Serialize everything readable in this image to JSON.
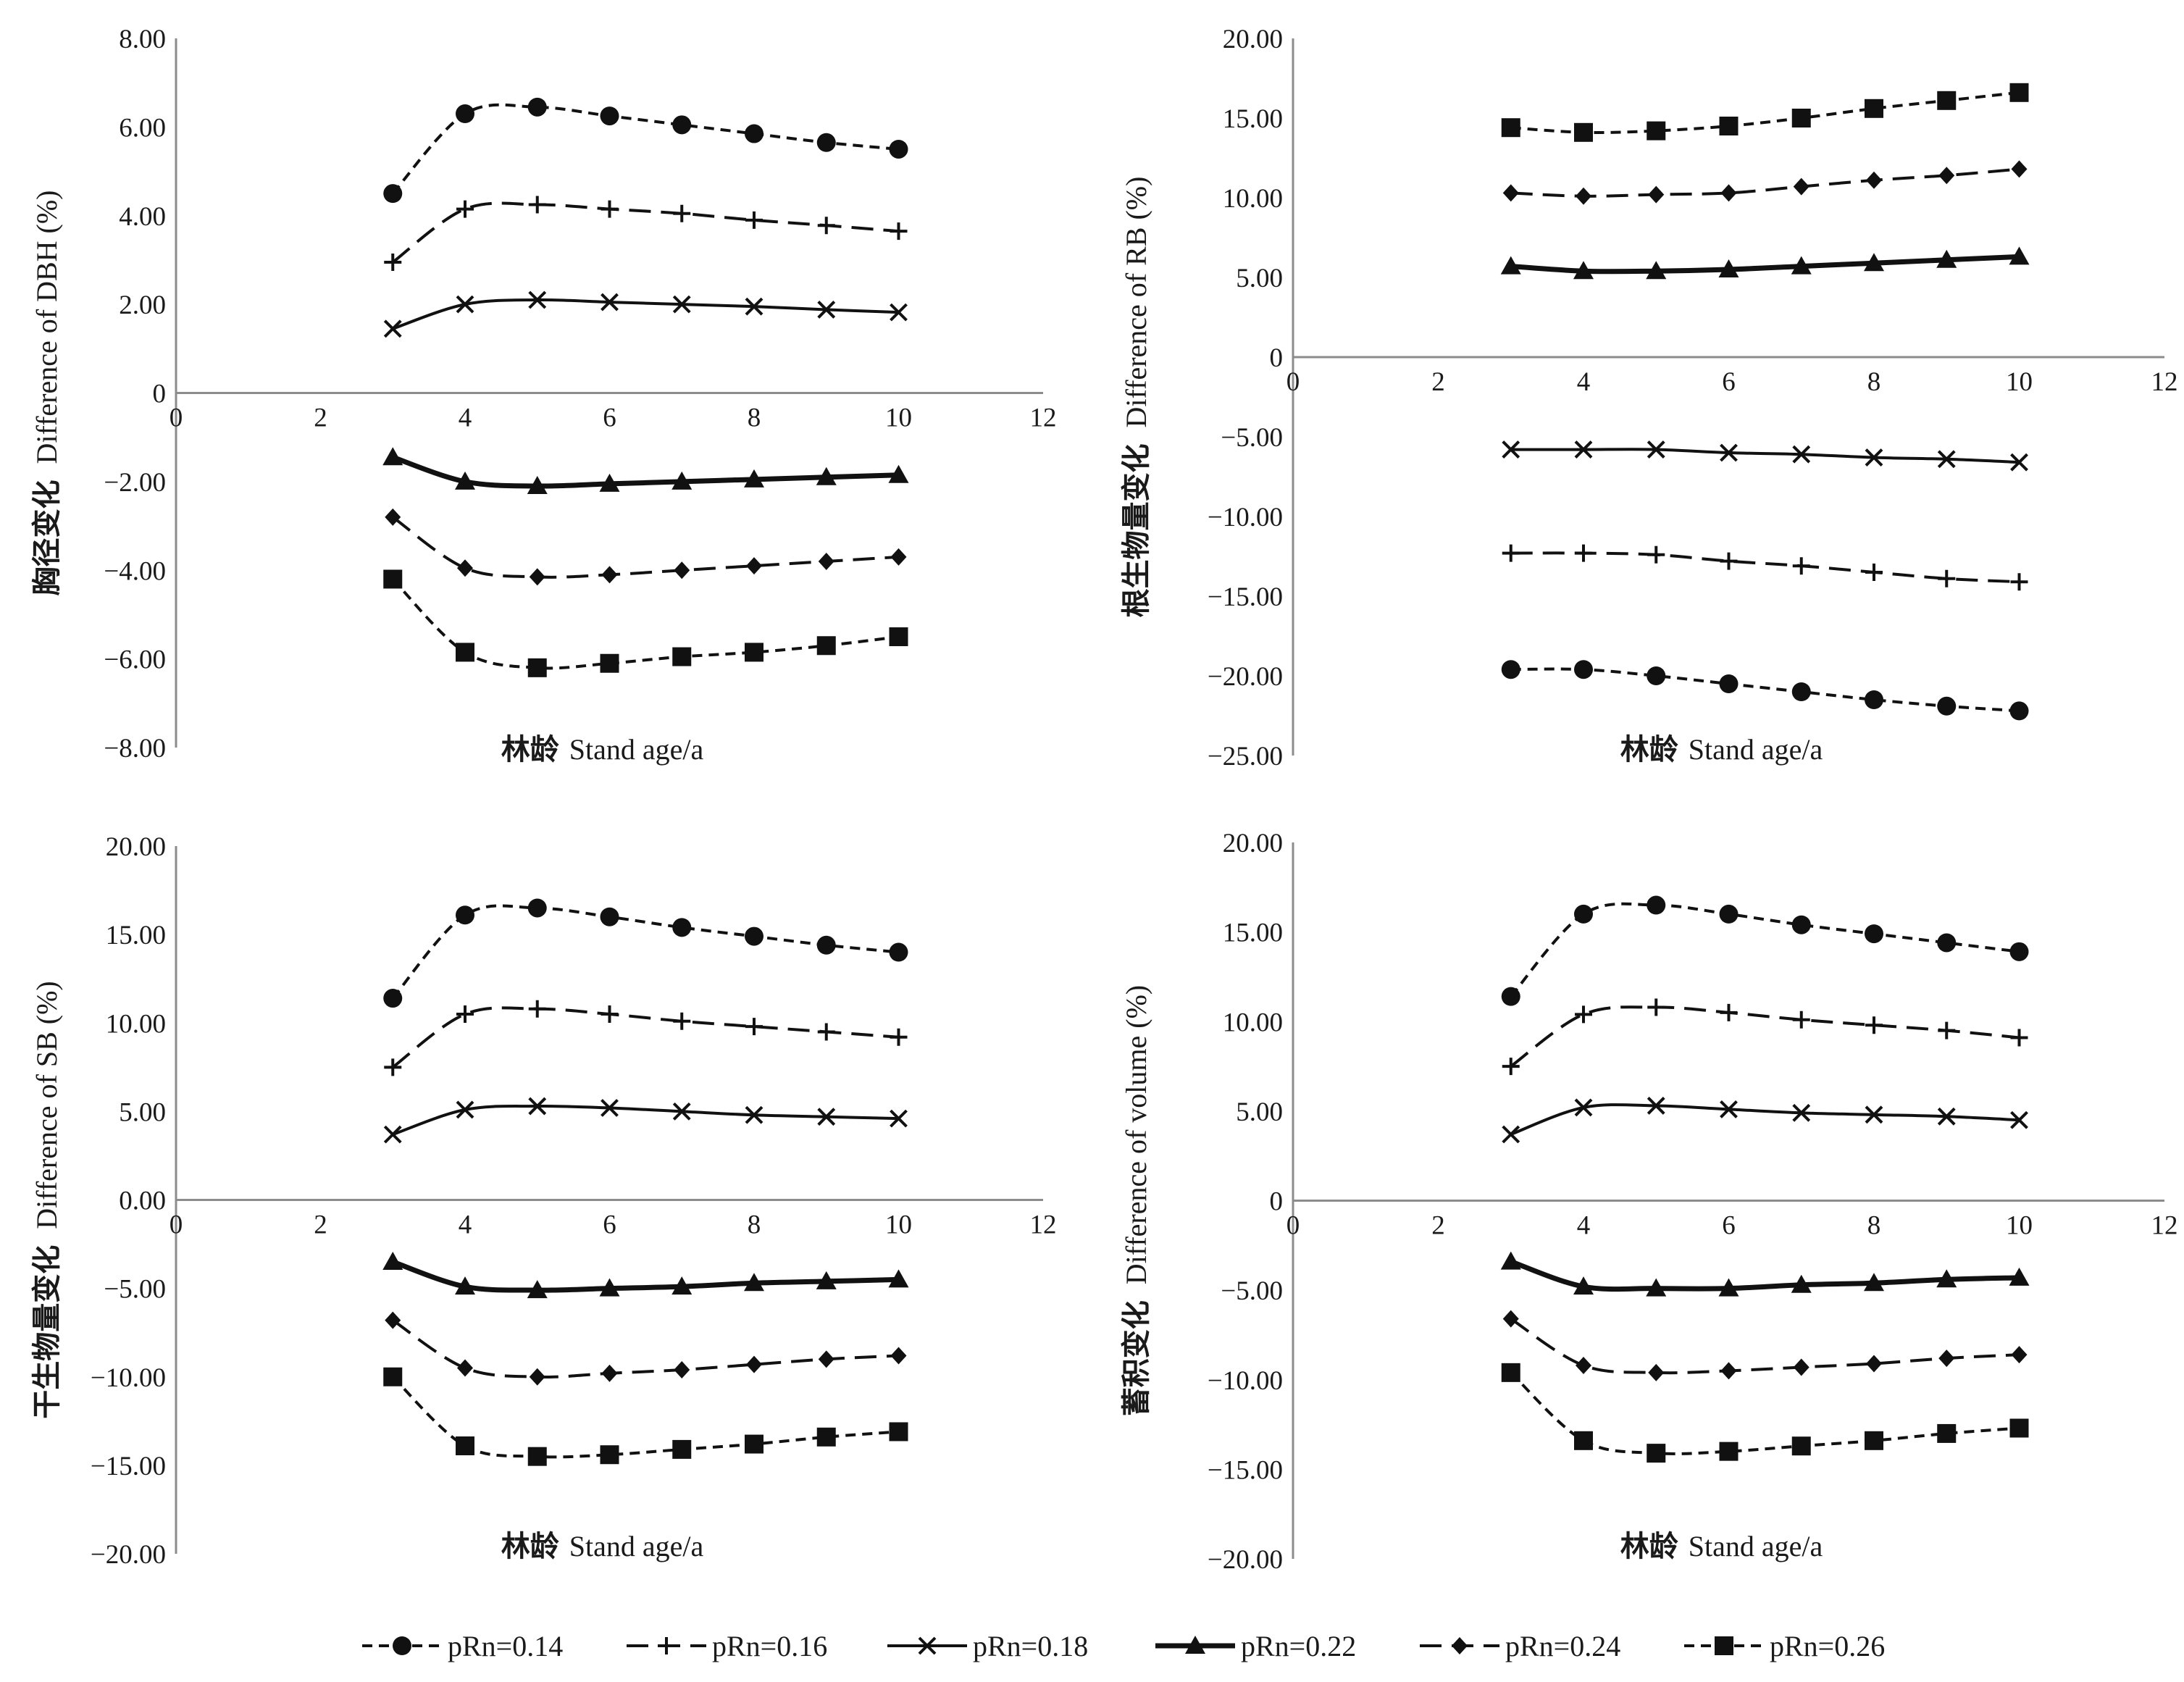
{
  "legend": [
    {
      "label": "pRn=0.14",
      "dash": "dashed-short",
      "marker": "circle"
    },
    {
      "label": "pRn=0.16",
      "dash": "dashed-long",
      "marker": "plus"
    },
    {
      "label": "pRn=0.18",
      "dash": "solid-thin",
      "marker": "x"
    },
    {
      "label": "pRn=0.22",
      "dash": "solid-thick",
      "marker": "triangle"
    },
    {
      "label": "pRn=0.24",
      "dash": "dashed-long",
      "marker": "diamond"
    },
    {
      "label": "pRn=0.26",
      "dash": "dashed-short",
      "marker": "square"
    }
  ],
  "chart_data": [
    {
      "type": "line",
      "ylabel_cn": "胸径变化",
      "ylabel_en": "Difference of DBH (%)",
      "xlabel_cn": "林龄",
      "xlabel_en": "Stand age/a",
      "xlim": [
        0,
        12
      ],
      "ylim": [
        -8,
        8
      ],
      "xticks": [
        "0",
        "2",
        "4",
        "6",
        "8",
        "10",
        "12"
      ],
      "yticks": [
        {
          "v": 8,
          "label": "8.00"
        },
        {
          "v": 6,
          "label": "6.00"
        },
        {
          "v": 4,
          "label": "4.00"
        },
        {
          "v": 2,
          "label": "2.00"
        },
        {
          "v": 0,
          "label": "0"
        },
        {
          "v": -2,
          "label": "−2.00"
        },
        {
          "v": -4,
          "label": "−4.00"
        },
        {
          "v": -6,
          "label": "−6.00"
        },
        {
          "v": -8,
          "label": "−8.00"
        }
      ],
      "x": [
        3,
        4,
        5,
        6,
        7,
        8,
        9,
        10
      ],
      "series": [
        {
          "name": "pRn=0.14",
          "values": [
            4.5,
            6.3,
            6.45,
            6.25,
            6.05,
            5.85,
            5.65,
            5.5
          ]
        },
        {
          "name": "pRn=0.16",
          "values": [
            2.95,
            4.15,
            4.25,
            4.15,
            4.05,
            3.9,
            3.78,
            3.65
          ]
        },
        {
          "name": "pRn=0.18",
          "values": [
            1.45,
            2.0,
            2.1,
            2.05,
            2.0,
            1.95,
            1.88,
            1.82
          ]
        },
        {
          "name": "pRn=0.22",
          "values": [
            -1.45,
            -2.0,
            -2.1,
            -2.05,
            -2.0,
            -1.95,
            -1.9,
            -1.85
          ]
        },
        {
          "name": "pRn=0.24",
          "values": [
            -2.8,
            -3.95,
            -4.15,
            -4.1,
            -4.0,
            -3.9,
            -3.8,
            -3.7
          ]
        },
        {
          "name": "pRn=0.26",
          "values": [
            -4.2,
            -5.85,
            -6.2,
            -6.1,
            -5.95,
            -5.85,
            -5.7,
            -5.5
          ]
        }
      ]
    },
    {
      "type": "line",
      "ylabel_cn": "根生物量变化",
      "ylabel_en": "Difference of RB (%)",
      "xlabel_cn": "林龄",
      "xlabel_en": "Stand age/a",
      "xlim": [
        0,
        12
      ],
      "ylim": [
        -25,
        20
      ],
      "xticks": [
        "0",
        "2",
        "4",
        "6",
        "8",
        "10",
        "12"
      ],
      "yticks": [
        {
          "v": 20,
          "label": "20.00"
        },
        {
          "v": 15,
          "label": "15.00"
        },
        {
          "v": 10,
          "label": "10.00"
        },
        {
          "v": 5,
          "label": "5.00"
        },
        {
          "v": 0,
          "label": "0"
        },
        {
          "v": -5,
          "label": "−5.00"
        },
        {
          "v": -10,
          "label": "−10.00"
        },
        {
          "v": -15,
          "label": "−15.00"
        },
        {
          "v": -20,
          "label": "−20.00"
        },
        {
          "v": -25,
          "label": "−25.00"
        }
      ],
      "x": [
        3,
        4,
        5,
        6,
        7,
        8,
        9,
        10
      ],
      "series": [
        {
          "name": "pRn=0.14",
          "values": [
            -19.6,
            -19.6,
            -20.0,
            -20.5,
            -21.0,
            -21.5,
            -21.9,
            -22.2
          ]
        },
        {
          "name": "pRn=0.16",
          "values": [
            -12.3,
            -12.3,
            -12.4,
            -12.8,
            -13.1,
            -13.5,
            -13.9,
            -14.1
          ]
        },
        {
          "name": "pRn=0.18",
          "values": [
            -5.8,
            -5.8,
            -5.8,
            -6.0,
            -6.1,
            -6.3,
            -6.4,
            -6.6
          ]
        },
        {
          "name": "pRn=0.22",
          "values": [
            5.7,
            5.4,
            5.4,
            5.5,
            5.7,
            5.9,
            6.1,
            6.3
          ]
        },
        {
          "name": "pRn=0.24",
          "values": [
            10.3,
            10.1,
            10.2,
            10.3,
            10.7,
            11.1,
            11.4,
            11.8
          ]
        },
        {
          "name": "pRn=0.26",
          "values": [
            14.4,
            14.1,
            14.2,
            14.5,
            15.0,
            15.6,
            16.1,
            16.6
          ]
        }
      ]
    },
    {
      "type": "line",
      "ylabel_cn": "干生物量变化",
      "ylabel_en": "Difference of SB (%)",
      "xlabel_cn": "林龄",
      "xlabel_en": "Stand age/a",
      "xlim": [
        0,
        12
      ],
      "ylim": [
        -20,
        20
      ],
      "xticks": [
        "0",
        "2",
        "4",
        "6",
        "8",
        "10",
        "12"
      ],
      "yticks": [
        {
          "v": 20,
          "label": "20.00"
        },
        {
          "v": 15,
          "label": "15.00"
        },
        {
          "v": 10,
          "label": "10.00"
        },
        {
          "v": 5,
          "label": "5.00"
        },
        {
          "v": 0,
          "label": "0.00"
        },
        {
          "v": -5,
          "label": "−5.00"
        },
        {
          "v": -10,
          "label": "−10.00"
        },
        {
          "v": -15,
          "label": "−15.00"
        },
        {
          "v": -20,
          "label": "−20.00"
        }
      ],
      "x": [
        3,
        4,
        5,
        6,
        7,
        8,
        9,
        10
      ],
      "series": [
        {
          "name": "pRn=0.14",
          "values": [
            11.4,
            16.1,
            16.5,
            16.0,
            15.4,
            14.9,
            14.4,
            14.0
          ]
        },
        {
          "name": "pRn=0.16",
          "values": [
            7.5,
            10.5,
            10.8,
            10.5,
            10.1,
            9.8,
            9.5,
            9.2
          ]
        },
        {
          "name": "pRn=0.18",
          "values": [
            3.7,
            5.1,
            5.3,
            5.2,
            5.0,
            4.8,
            4.7,
            4.6
          ]
        },
        {
          "name": "pRn=0.22",
          "values": [
            -3.5,
            -4.9,
            -5.1,
            -5.0,
            -4.9,
            -4.7,
            -4.6,
            -4.5
          ]
        },
        {
          "name": "pRn=0.24",
          "values": [
            -6.8,
            -9.5,
            -10.0,
            -9.8,
            -9.6,
            -9.3,
            -9.0,
            -8.8
          ]
        },
        {
          "name": "pRn=0.26",
          "values": [
            -10.0,
            -13.9,
            -14.5,
            -14.4,
            -14.1,
            -13.8,
            -13.4,
            -13.1
          ]
        }
      ]
    },
    {
      "type": "line",
      "ylabel_cn": "蓄积变化",
      "ylabel_en": "Difference of volume (%)",
      "xlabel_cn": "林龄",
      "xlabel_en": "Stand age/a",
      "xlim": [
        0,
        12
      ],
      "ylim": [
        -20,
        20
      ],
      "xticks": [
        "0",
        "2",
        "4",
        "6",
        "8",
        "10",
        "12"
      ],
      "yticks": [
        {
          "v": 20,
          "label": "20.00"
        },
        {
          "v": 15,
          "label": "15.00"
        },
        {
          "v": 10,
          "label": "10.00"
        },
        {
          "v": 5,
          "label": "5.00"
        },
        {
          "v": 0,
          "label": "0"
        },
        {
          "v": -5,
          "label": "−5.00"
        },
        {
          "v": -10,
          "label": "−10.00"
        },
        {
          "v": -15,
          "label": "−15.00"
        },
        {
          "v": -20,
          "label": "−20.00"
        }
      ],
      "x": [
        3,
        4,
        5,
        6,
        7,
        8,
        9,
        10
      ],
      "series": [
        {
          "name": "pRn=0.14",
          "values": [
            11.4,
            16.0,
            16.5,
            16.0,
            15.4,
            14.9,
            14.4,
            13.9
          ]
        },
        {
          "name": "pRn=0.16",
          "values": [
            7.5,
            10.4,
            10.8,
            10.5,
            10.1,
            9.8,
            9.5,
            9.1
          ]
        },
        {
          "name": "pRn=0.18",
          "values": [
            3.7,
            5.2,
            5.3,
            5.1,
            4.9,
            4.8,
            4.7,
            4.5
          ]
        },
        {
          "name": "pRn=0.22",
          "values": [
            -3.4,
            -4.8,
            -4.9,
            -4.9,
            -4.7,
            -4.6,
            -4.4,
            -4.3
          ]
        },
        {
          "name": "pRn=0.24",
          "values": [
            -6.6,
            -9.2,
            -9.6,
            -9.5,
            -9.3,
            -9.1,
            -8.8,
            -8.6
          ]
        },
        {
          "name": "pRn=0.26",
          "values": [
            -9.6,
            -13.4,
            -14.1,
            -14.0,
            -13.7,
            -13.4,
            -13.0,
            -12.7
          ]
        }
      ]
    }
  ]
}
